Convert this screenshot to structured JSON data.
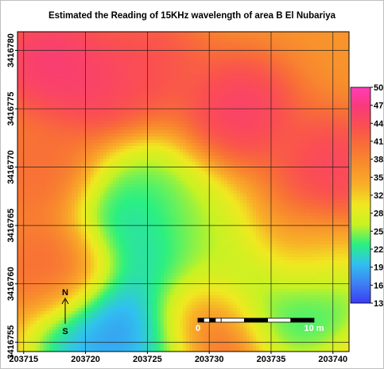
{
  "chart_data": {
    "type": "heatmap",
    "title": "Estimated the Reading of 15KHz wavelength of area B El Nubariya",
    "xlabel": "",
    "ylabel": "",
    "x_ticks": [
      203715,
      203720,
      203725,
      203730,
      203735,
      203740
    ],
    "y_ticks": [
      3416755,
      3416760,
      3416765,
      3416770,
      3416775,
      3416780
    ],
    "xlim": [
      203714.5,
      203741.3
    ],
    "ylim": [
      3416754.2,
      3416781.6
    ],
    "grid": true,
    "colorbar": {
      "ticks": [
        13,
        16,
        19,
        22,
        25,
        28,
        32,
        35,
        38,
        41,
        44,
        47,
        50
      ],
      "range": [
        13,
        50
      ],
      "colors": [
        "#3a3cf5",
        "#3f80f2",
        "#30c0f0",
        "#2bf080",
        "#c8f222",
        "#f0e820",
        "#f8b028",
        "#f88f2c",
        "#f87036",
        "#fa5050",
        "#f93a78",
        "#ff3cb8"
      ]
    },
    "base_value": 36,
    "field_blobs": [
      {
        "x": 203717,
        "y": 3416779,
        "value": 49
      },
      {
        "x": 203721,
        "y": 3416777,
        "value": 47
      },
      {
        "x": 203725,
        "y": 3416779,
        "value": 45
      },
      {
        "x": 203732.5,
        "y": 3416775,
        "value": 48
      },
      {
        "x": 203740,
        "y": 3416770,
        "value": 47
      },
      {
        "x": 203716,
        "y": 3416770,
        "value": 41
      },
      {
        "x": 203738,
        "y": 3416762,
        "value": 40
      },
      {
        "x": 203718,
        "y": 3416761,
        "value": 42
      },
      {
        "x": 203723,
        "y": 3416757,
        "value": 14
      },
      {
        "x": 203720,
        "y": 3416755,
        "value": 15
      },
      {
        "x": 203726,
        "y": 3416755,
        "value": 15
      },
      {
        "x": 203723.5,
        "y": 3416765,
        "value": 18
      },
      {
        "x": 203726,
        "y": 3416761,
        "value": 18
      },
      {
        "x": 203725,
        "y": 3416768,
        "value": 22
      },
      {
        "x": 203728.5,
        "y": 3416765,
        "value": 24
      },
      {
        "x": 203733,
        "y": 3416759.5,
        "value": 22
      },
      {
        "x": 203737,
        "y": 3416757.5,
        "value": 20
      },
      {
        "x": 203739,
        "y": 3416760,
        "value": 18
      },
      {
        "x": 203730,
        "y": 3416761,
        "value": 26
      },
      {
        "x": 203729.5,
        "y": 3416756.5,
        "value": 50
      }
    ],
    "annotations": {
      "north_label": "N",
      "south_label": "S",
      "scale_start": "0",
      "scale_end": "10 m",
      "scale_length": 10
    }
  }
}
